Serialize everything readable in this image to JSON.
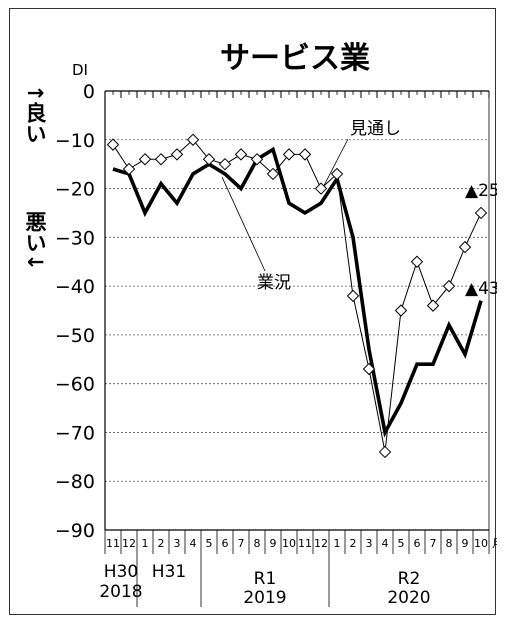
{
  "chart_data": {
    "type": "line",
    "title": "サービス業",
    "ylabel": "DI",
    "ylim": [
      -90,
      0
    ],
    "yticks": [
      "0",
      "−10",
      "−20",
      "−30",
      "−40",
      "−50",
      "−60",
      "−70",
      "−80",
      "−90"
    ],
    "grid": true,
    "x": [
      "11",
      "12",
      "1",
      "2",
      "3",
      "4",
      "5",
      "6",
      "7",
      "8",
      "9",
      "10",
      "11",
      "12",
      "1",
      "2",
      "3",
      "4",
      "5",
      "6",
      "7",
      "8",
      "9",
      "10"
    ],
    "month_unit": "月",
    "era_labels": [
      {
        "era": "H30",
        "year": "2018"
      },
      {
        "era": "H31",
        "year": ""
      },
      {
        "era": "R1",
        "year": "2019"
      },
      {
        "era": "R2",
        "year": "2020"
      }
    ],
    "series": [
      {
        "name": "業況",
        "style": "bold-line",
        "color": "#000000",
        "values": [
          -16,
          -17,
          -25,
          -19,
          -23,
          -17,
          -15,
          -17,
          -20,
          -14,
          -12,
          -23,
          -25,
          -23,
          -18,
          -30,
          -53,
          -70,
          -64,
          -56,
          -56,
          -48,
          -54,
          -43
        ]
      },
      {
        "name": "見通し",
        "style": "diamond-line",
        "color": "#000000",
        "values": [
          -11,
          -16,
          -14,
          -14,
          -13,
          -10,
          -14,
          -15,
          -13,
          -14,
          -17,
          -13,
          -13,
          -20,
          -17,
          -42,
          -57,
          -74,
          -45,
          -35,
          -44,
          -40,
          -32,
          -25
        ]
      }
    ],
    "side_labels": {
      "good": "↑良い",
      "bad": "悪い↓"
    },
    "end_markers": [
      {
        "series": "見通し",
        "value": -25,
        "label": "▲25"
      },
      {
        "series": "業況",
        "value": -43,
        "label": "▲43"
      }
    ]
  }
}
